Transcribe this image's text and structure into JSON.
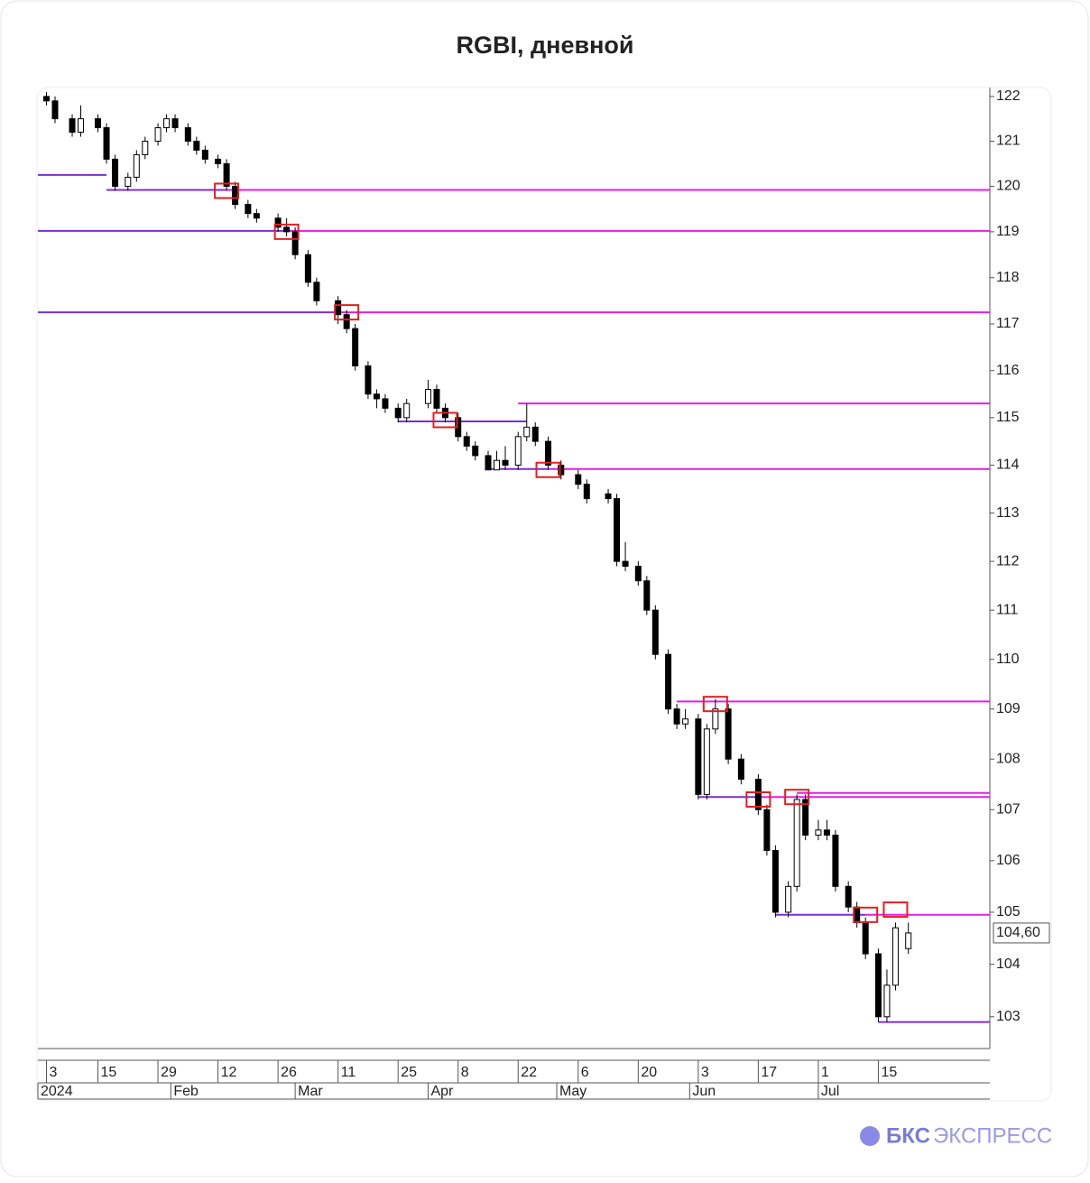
{
  "chart_data": {
    "type": "candlestick",
    "title": "RGBI, дневной",
    "log_y": true,
    "ylim": [
      102.4,
      122.2
    ],
    "yticks": [
      103,
      104,
      105,
      106,
      107,
      108,
      109,
      110,
      111,
      112,
      113,
      114,
      115,
      116,
      117,
      118,
      119,
      120,
      121,
      122
    ],
    "xlim": [
      "2024-01-01",
      "2024-08-10"
    ],
    "xticks": [
      {
        "value": "2024-01-03",
        "label": "3"
      },
      {
        "value": "2024-01-15",
        "label": "15"
      },
      {
        "value": "2024-01-29",
        "label": "29"
      },
      {
        "value": "2024-02-12",
        "label": "12"
      },
      {
        "value": "2024-02-26",
        "label": "26"
      },
      {
        "value": "2024-03-11",
        "label": "11"
      },
      {
        "value": "2024-03-25",
        "label": "25"
      },
      {
        "value": "2024-04-08",
        "label": "8"
      },
      {
        "value": "2024-04-22",
        "label": "22"
      },
      {
        "value": "2024-05-06",
        "label": "6"
      },
      {
        "value": "2024-05-20",
        "label": "20"
      },
      {
        "value": "2024-06-03",
        "label": "3"
      },
      {
        "value": "2024-06-17",
        "label": "17"
      },
      {
        "value": "2024-07-01",
        "label": "1"
      },
      {
        "value": "2024-07-15",
        "label": "15"
      }
    ],
    "month_ticks": [
      {
        "value": "2024-01-01",
        "label": "2024"
      },
      {
        "value": "2024-02-01",
        "label": "Feb"
      },
      {
        "value": "2024-03-01",
        "label": "Mar"
      },
      {
        "value": "2024-04-01",
        "label": "Apr"
      },
      {
        "value": "2024-05-01",
        "label": "May"
      },
      {
        "value": "2024-06-01",
        "label": "Jun"
      },
      {
        "value": "2024-07-01",
        "label": "Jul"
      }
    ],
    "up_color": "#ffffff",
    "down_color": "#000000",
    "x": [
      "2024-01-03",
      "2024-01-05",
      "2024-01-09",
      "2024-01-11",
      "2024-01-15",
      "2024-01-17",
      "2024-01-19",
      "2024-01-22",
      "2024-01-24",
      "2024-01-26",
      "2024-01-29",
      "2024-01-31",
      "2024-02-02",
      "2024-02-05",
      "2024-02-07",
      "2024-02-09",
      "2024-02-12",
      "2024-02-14",
      "2024-02-16",
      "2024-02-19",
      "2024-02-21",
      "2024-02-26",
      "2024-02-28",
      "2024-03-01",
      "2024-03-04",
      "2024-03-06",
      "2024-03-11",
      "2024-03-13",
      "2024-03-15",
      "2024-03-18",
      "2024-03-20",
      "2024-03-22",
      "2024-03-25",
      "2024-03-27",
      "2024-04-01",
      "2024-04-03",
      "2024-04-05",
      "2024-04-08",
      "2024-04-10",
      "2024-04-12",
      "2024-04-15",
      "2024-04-17",
      "2024-04-19",
      "2024-04-22",
      "2024-04-24",
      "2024-04-26",
      "2024-04-29",
      "2024-05-02",
      "2024-05-06",
      "2024-05-08",
      "2024-05-13",
      "2024-05-15",
      "2024-05-17",
      "2024-05-20",
      "2024-05-22",
      "2024-05-24",
      "2024-05-27",
      "2024-05-29",
      "2024-05-31",
      "2024-06-03",
      "2024-06-05",
      "2024-06-07",
      "2024-06-10",
      "2024-06-13",
      "2024-06-17",
      "2024-06-19",
      "2024-06-21",
      "2024-06-24",
      "2024-06-26",
      "2024-06-28",
      "2024-07-01",
      "2024-07-03",
      "2024-07-05",
      "2024-07-08",
      "2024-07-10",
      "2024-07-12",
      "2024-07-15",
      "2024-07-17",
      "2024-07-19",
      "2024-07-22"
    ],
    "ohlc": [
      [
        122.0,
        122.1,
        121.8,
        121.9
      ],
      [
        121.9,
        122.0,
        121.4,
        121.5
      ],
      [
        121.5,
        121.6,
        121.1,
        121.2
      ],
      [
        121.2,
        121.8,
        121.1,
        121.5
      ],
      [
        121.5,
        121.6,
        121.2,
        121.3
      ],
      [
        121.3,
        121.4,
        120.5,
        120.6
      ],
      [
        120.6,
        120.7,
        119.9,
        120.0
      ],
      [
        120.0,
        120.3,
        119.9,
        120.2
      ],
      [
        120.2,
        120.8,
        120.1,
        120.7
      ],
      [
        120.7,
        121.1,
        120.6,
        121.0
      ],
      [
        121.0,
        121.4,
        120.9,
        121.3
      ],
      [
        121.3,
        121.6,
        121.2,
        121.5
      ],
      [
        121.5,
        121.6,
        121.2,
        121.3
      ],
      [
        121.3,
        121.4,
        120.9,
        121.0
      ],
      [
        121.0,
        121.1,
        120.7,
        120.8
      ],
      [
        120.8,
        120.9,
        120.5,
        120.6
      ],
      [
        120.6,
        120.7,
        120.4,
        120.5
      ],
      [
        120.5,
        120.6,
        119.9,
        120.0
      ],
      [
        120.0,
        120.1,
        119.5,
        119.6
      ],
      [
        119.6,
        119.7,
        119.3,
        119.4
      ],
      [
        119.4,
        119.5,
        119.2,
        119.3
      ],
      [
        119.3,
        119.4,
        119.0,
        119.1
      ],
      [
        119.1,
        119.3,
        118.9,
        119.0
      ],
      [
        119.0,
        119.1,
        118.4,
        118.5
      ],
      [
        118.5,
        118.6,
        117.8,
        117.9
      ],
      [
        117.9,
        118.0,
        117.4,
        117.5
      ],
      [
        117.5,
        117.6,
        117.0,
        117.2
      ],
      [
        117.2,
        117.3,
        116.8,
        116.9
      ],
      [
        116.9,
        117.0,
        116.0,
        116.1
      ],
      [
        116.1,
        116.2,
        115.4,
        115.5
      ],
      [
        115.5,
        115.6,
        115.2,
        115.4
      ],
      [
        115.4,
        115.5,
        115.1,
        115.2
      ],
      [
        115.2,
        115.3,
        114.9,
        115.0
      ],
      [
        115.0,
        115.4,
        114.9,
        115.3
      ],
      [
        115.3,
        115.8,
        115.2,
        115.6
      ],
      [
        115.6,
        115.7,
        115.1,
        115.2
      ],
      [
        115.2,
        115.3,
        114.9,
        115.0
      ],
      [
        115.0,
        115.1,
        114.5,
        114.6
      ],
      [
        114.6,
        114.7,
        114.3,
        114.4
      ],
      [
        114.4,
        114.5,
        114.1,
        114.2
      ],
      [
        114.2,
        114.3,
        113.9,
        113.9
      ],
      [
        113.9,
        114.3,
        113.9,
        114.1
      ],
      [
        114.1,
        114.4,
        113.9,
        114.0
      ],
      [
        114.0,
        114.7,
        113.9,
        114.6
      ],
      [
        114.6,
        115.3,
        114.5,
        114.8
      ],
      [
        114.8,
        114.9,
        114.4,
        114.5
      ],
      [
        114.5,
        114.6,
        113.9,
        114.0
      ],
      [
        114.0,
        114.1,
        113.7,
        113.8
      ],
      [
        113.8,
        113.9,
        113.5,
        113.6
      ],
      [
        113.6,
        113.7,
        113.2,
        113.3
      ],
      [
        113.4,
        113.5,
        113.2,
        113.3
      ],
      [
        113.3,
        113.4,
        111.9,
        112.0
      ],
      [
        112.0,
        112.4,
        111.8,
        111.9
      ],
      [
        111.9,
        112.0,
        111.5,
        111.6
      ],
      [
        111.6,
        111.7,
        110.9,
        111.0
      ],
      [
        111.0,
        111.1,
        110.0,
        110.1
      ],
      [
        110.1,
        110.2,
        108.9,
        109.0
      ],
      [
        109.0,
        109.1,
        108.6,
        108.7
      ],
      [
        108.7,
        109.0,
        108.6,
        108.8
      ],
      [
        108.8,
        108.9,
        107.2,
        107.3
      ],
      [
        107.3,
        108.7,
        107.2,
        108.6
      ],
      [
        108.6,
        109.2,
        108.5,
        109.0
      ],
      [
        109.0,
        109.1,
        107.9,
        108.0
      ],
      [
        108.0,
        108.1,
        107.5,
        107.6
      ],
      [
        107.6,
        107.7,
        106.9,
        107.0
      ],
      [
        107.0,
        107.1,
        106.1,
        106.2
      ],
      [
        106.2,
        106.3,
        104.9,
        105.0
      ],
      [
        105.0,
        105.6,
        104.9,
        105.5
      ],
      [
        105.5,
        107.3,
        105.4,
        107.2
      ],
      [
        107.2,
        107.3,
        106.4,
        106.5
      ],
      [
        106.5,
        106.8,
        106.4,
        106.6
      ],
      [
        106.6,
        106.8,
        106.4,
        106.5
      ],
      [
        106.5,
        106.6,
        105.4,
        105.5
      ],
      [
        105.5,
        105.6,
        105.0,
        105.1
      ],
      [
        105.1,
        105.2,
        104.7,
        104.8
      ],
      [
        104.8,
        104.9,
        104.1,
        104.2
      ],
      [
        104.2,
        104.3,
        102.9,
        103.0
      ],
      [
        103.0,
        103.9,
        102.9,
        103.6
      ],
      [
        103.6,
        104.8,
        103.5,
        104.7
      ],
      [
        104.3,
        104.8,
        104.2,
        104.6
      ]
    ],
    "levels": [
      {
        "value": 120.25,
        "from": "2024-01-01",
        "to": "2024-01-17",
        "color": "#7a2fd0"
      },
      {
        "value": 119.92,
        "from": "2024-01-17",
        "to": "2024-02-14",
        "color": "#7a2fd0"
      },
      {
        "value": 119.92,
        "from": "2024-02-14",
        "to": "2024-08-10",
        "color": "#e020e0"
      },
      {
        "value": 119.02,
        "from": "2024-01-01",
        "to": "2024-02-28",
        "color": "#7a2fd0"
      },
      {
        "value": 119.02,
        "from": "2024-02-28",
        "to": "2024-08-10",
        "color": "#e020e0"
      },
      {
        "value": 117.25,
        "from": "2024-01-01",
        "to": "2024-03-11",
        "color": "#7a2fd0"
      },
      {
        "value": 117.25,
        "from": "2024-03-11",
        "to": "2024-08-10",
        "color": "#e020e0"
      },
      {
        "value": 114.92,
        "from": "2024-03-25",
        "to": "2024-04-24",
        "color": "#7a2fd0"
      },
      {
        "value": 115.3,
        "from": "2024-04-22",
        "to": "2024-08-10",
        "color": "#e020e0"
      },
      {
        "value": 113.92,
        "from": "2024-04-15",
        "to": "2024-04-29",
        "color": "#7a2fd0"
      },
      {
        "value": 113.92,
        "from": "2024-04-29",
        "to": "2024-08-10",
        "color": "#e020e0"
      },
      {
        "value": 109.15,
        "from": "2024-05-29",
        "to": "2024-08-10",
        "color": "#e020e0"
      },
      {
        "value": 107.25,
        "from": "2024-06-03",
        "to": "2024-06-17",
        "color": "#7a2fd0"
      },
      {
        "value": 107.25,
        "from": "2024-06-17",
        "to": "2024-08-10",
        "color": "#e020e0"
      },
      {
        "value": 107.33,
        "from": "2024-06-26",
        "to": "2024-08-10",
        "color": "#e020e0"
      },
      {
        "value": 104.95,
        "from": "2024-06-21",
        "to": "2024-07-12",
        "color": "#7a2fd0"
      },
      {
        "value": 104.95,
        "from": "2024-07-12",
        "to": "2024-08-10",
        "color": "#e020e0"
      },
      {
        "value": 102.9,
        "from": "2024-07-15",
        "to": "2024-08-10",
        "color": "#7a2fd0"
      }
    ],
    "boxes": [
      {
        "x": "2024-02-14",
        "value": 119.9
      },
      {
        "x": "2024-02-28",
        "value": 119.0
      },
      {
        "x": "2024-03-13",
        "value": 117.25
      },
      {
        "x": "2024-04-05",
        "value": 114.95
      },
      {
        "x": "2024-04-29",
        "value": 113.9
      },
      {
        "x": "2024-06-07",
        "value": 109.1
      },
      {
        "x": "2024-06-17",
        "value": 107.2
      },
      {
        "x": "2024-06-26",
        "value": 107.25
      },
      {
        "x": "2024-07-12",
        "value": 104.95
      },
      {
        "x": "2024-07-19",
        "value": 105.05
      }
    ],
    "box_color": "#e02020",
    "last_price": {
      "value": 104.6,
      "label": "104,60"
    }
  },
  "logo": {
    "brand": "БКС",
    "product": "ЭКСПРЕСС"
  }
}
